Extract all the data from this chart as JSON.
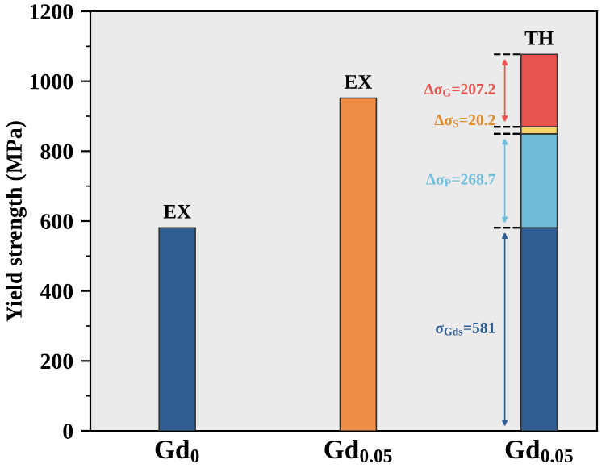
{
  "chart_data": {
    "type": "bar",
    "stacked": true,
    "ylabel": "Yield strength (MPa)",
    "categories": [
      "Gd$_{0}$",
      "Gd$_{0.05}$",
      "Gd$_{0.05}$"
    ],
    "series": [
      {
        "colors": [
          "#2f5d91",
          "#ee8c45",
          "#2f5d91"
        ],
        "values": [
          581,
          952,
          581
        ]
      },
      {
        "color": "#6fbcd9",
        "values": [
          null,
          null,
          268.7
        ]
      },
      {
        "color": "#f5d36b",
        "values": [
          null,
          null,
          20.2
        ]
      },
      {
        "color": "#e8534f",
        "values": [
          null,
          null,
          207.2
        ]
      }
    ],
    "annotations": [
      "EX",
      "EX",
      "TH",
      "σ$_{Gds}$=581",
      "Δσ$_{P}$=268.7",
      "Δσ$_{S}$=20.2",
      "Δσ$_{G}$=207.2"
    ],
    "ylim": [
      0,
      1200
    ],
    "yticks": [
      0,
      200,
      400,
      600,
      800,
      1000,
      1200
    ],
    "grid": false,
    "legend": false
  }
}
